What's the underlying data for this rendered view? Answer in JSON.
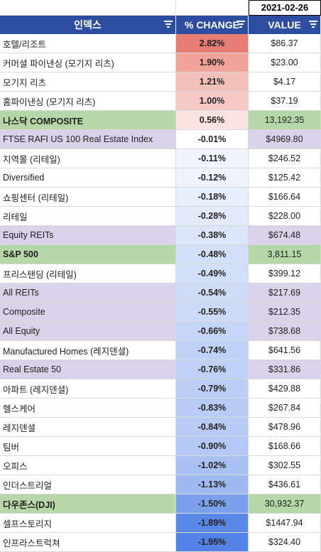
{
  "date": "2021-02-26",
  "headers": {
    "index": "인덱스",
    "change": "% CHANGE",
    "value": "VALUE"
  },
  "rows": [
    {
      "name": "호텔/리조트",
      "change": "2.82%",
      "value": "$86.37",
      "type": "plain",
      "color": "#e67c73"
    },
    {
      "name": "커머셜 파이낸싱 (모기지 리츠)",
      "change": "1.90%",
      "value": "$23.00",
      "type": "plain",
      "color": "#f0a29b"
    },
    {
      "name": "모기지 리츠",
      "change": "1.21%",
      "value": "$4.17",
      "type": "plain",
      "color": "#f5bfb9"
    },
    {
      "name": "홈파이낸싱 (모기지 리츠)",
      "change": "1.00%",
      "value": "$37.19",
      "type": "plain",
      "color": "#f7c9c4"
    },
    {
      "name": "나스닥 COMPOSITE",
      "change": "0.56%",
      "value": "13,192.35",
      "type": "green",
      "color": "#fbe3e1"
    },
    {
      "name": "FTSE RAFI US 100 Real Estate Index",
      "change": "-0.01%",
      "value": "$4969.80",
      "type": "purple",
      "color": "#ffffff"
    },
    {
      "name": "지역몰 (리테일)",
      "change": "-0.11%",
      "value": "$246.52",
      "type": "plain",
      "color": "#f0f5fd"
    },
    {
      "name": "Diversified",
      "change": "-0.12%",
      "value": "$125.42",
      "type": "plain",
      "color": "#eff4fd"
    },
    {
      "name": "쇼핑센터 (리테일)",
      "change": "-0.18%",
      "value": "$166.64",
      "type": "plain",
      "color": "#e8effc"
    },
    {
      "name": "리테일",
      "change": "-0.28%",
      "value": "$228.00",
      "type": "plain",
      "color": "#e3ebfb"
    },
    {
      "name": "Equity REITs",
      "change": "-0.38%",
      "value": "$674.48",
      "type": "purple",
      "color": "#dbe6fa"
    },
    {
      "name": "S&P 500",
      "change": "-0.48%",
      "value": "3,811.15",
      "type": "green",
      "color": "#d3e0f9"
    },
    {
      "name": "프리스탠딩 (리테일)",
      "change": "-0.49%",
      "value": "$399.12",
      "type": "plain",
      "color": "#d2dff9"
    },
    {
      "name": "All REITs",
      "change": "-0.54%",
      "value": "$217.69",
      "type": "purple",
      "color": "#cfdcf8"
    },
    {
      "name": "Composite",
      "change": "-0.55%",
      "value": "$212.35",
      "type": "purple",
      "color": "#cedbf8"
    },
    {
      "name": "All Equity",
      "change": "-0.66%",
      "value": "$738.68",
      "type": "purple",
      "color": "#c5d5f7"
    },
    {
      "name": "Manufactured Homes (레지덴셜)",
      "change": "-0.74%",
      "value": "$641.56",
      "type": "plain",
      "color": "#c0d1f6"
    },
    {
      "name": "Real Estate 50",
      "change": "-0.76%",
      "value": "$331.86",
      "type": "purple",
      "color": "#bfd0f6"
    },
    {
      "name": "아파트 (레지덴셜)",
      "change": "-0.79%",
      "value": "$429.88",
      "type": "plain",
      "color": "#bccef5"
    },
    {
      "name": "헬스케어",
      "change": "-0.83%",
      "value": "$267.84",
      "type": "plain",
      "color": "#b9ccf5"
    },
    {
      "name": "레지덴셜",
      "change": "-0.84%",
      "value": "$478.96",
      "type": "plain",
      "color": "#b8cbf5"
    },
    {
      "name": "팀버",
      "change": "-0.90%",
      "value": "$168.66",
      "type": "plain",
      "color": "#b3c8f4"
    },
    {
      "name": "오피스",
      "change": "-1.02%",
      "value": "$302.55",
      "type": "plain",
      "color": "#a8c0f2"
    },
    {
      "name": "인더스트리얼",
      "change": "-1.13%",
      "value": "$436.61",
      "type": "plain",
      "color": "#9fb9f1"
    },
    {
      "name": "다우존스(DJI)",
      "change": "-1.50%",
      "value": "30,932.37",
      "type": "green",
      "color": "#7ca0ec"
    },
    {
      "name": "셀프스토리지",
      "change": "-1.89%",
      "value": "$1447.94",
      "type": "plain",
      "color": "#5a88e8"
    },
    {
      "name": "인프라스트럭쳐",
      "change": "-1.95%",
      "value": "$324.40",
      "type": "plain",
      "color": "#5483e7"
    }
  ]
}
